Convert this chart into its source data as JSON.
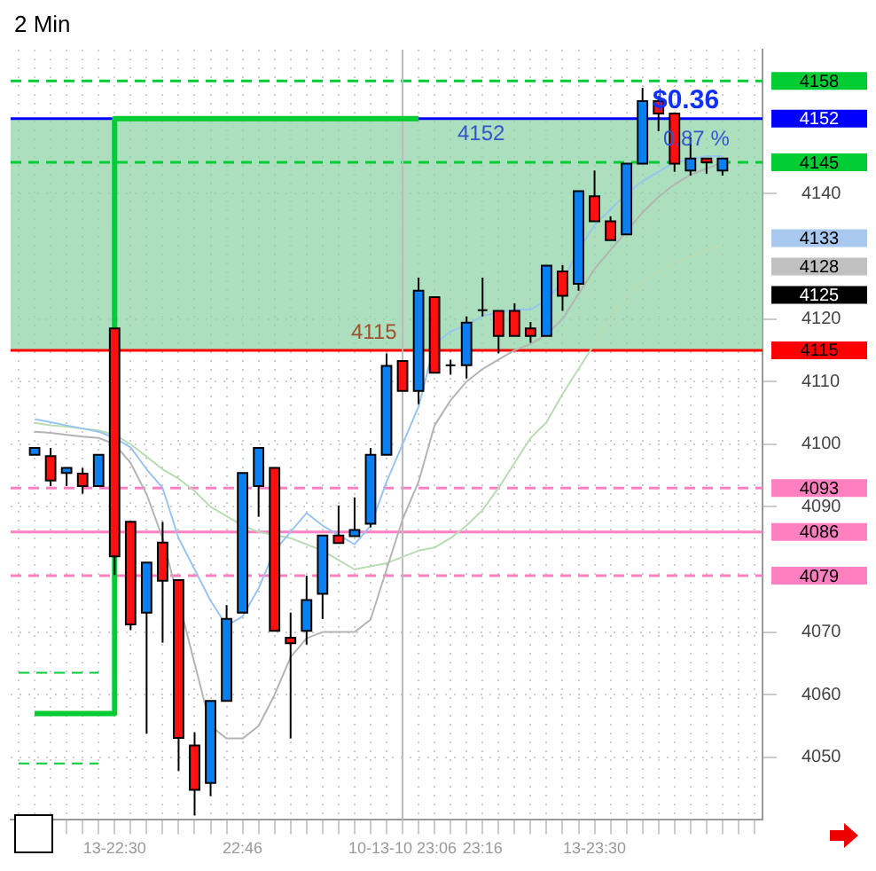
{
  "chart_data": {
    "type": "candlestick",
    "title": "2 Min",
    "categories": [
      null,
      null,
      null,
      null,
      null,
      null,
      "13-22:30",
      null,
      null,
      null,
      null,
      null,
      null,
      null,
      "22:46",
      null,
      null,
      null,
      null,
      null,
      null,
      null,
      null,
      null,
      "10-13-10 23:06",
      null,
      null,
      null,
      null,
      "23:16",
      null,
      null,
      null,
      null,
      null,
      null,
      "13-23:30",
      null,
      null,
      null,
      null,
      null,
      null,
      null,
      null,
      null,
      null
    ],
    "ohlc": [
      null,
      [
        4098.3,
        4099.4,
        4098.3,
        4099.4
      ],
      [
        4098.1,
        4099.4,
        4093.3,
        4094.2
      ],
      [
        4095.4,
        4096.2,
        4093.3,
        4096.2
      ],
      [
        4095.3,
        4096.2,
        4092.1,
        4093.3
      ],
      [
        4093.3,
        4098.3,
        4093.3,
        4098.3
      ],
      [
        4118.5,
        4118.5,
        4079.1,
        4082.1
      ],
      [
        4087.6,
        4087.6,
        4070.3,
        4071.2
      ],
      [
        4073.1,
        4081.1,
        4053.8,
        4081.1
      ],
      [
        4084.3,
        4087.6,
        4068.3,
        4078.2
      ],
      [
        4078.3,
        4078.3,
        4047.8,
        4053.1
      ],
      [
        4051.9,
        4054,
        4040.7,
        4044.8
      ],
      [
        4045.9,
        4059,
        4043.8,
        4059
      ],
      [
        4059,
        4074.3,
        4059,
        4072.1
      ],
      [
        4073.1,
        4095.4,
        4073.1,
        4095.4
      ],
      [
        4093.3,
        4099.4,
        4088.4,
        4099.4
      ],
      [
        4096.2,
        4096.2,
        4070.2,
        4070.2
      ],
      [
        4069.1,
        4073.1,
        4053,
        4068.2
      ],
      [
        4070.2,
        4079,
        4068,
        4075.1
      ],
      [
        4076.1,
        4085.4,
        4072.1,
        4085.4
      ],
      [
        4085.4,
        4090.2,
        4084.2,
        4084.2
      ],
      [
        4085.3,
        4091.5,
        4085.3,
        4086.3
      ],
      [
        4087.3,
        4099.4,
        4086.7,
        4098.3
      ],
      [
        4098.3,
        4114.5,
        4098.3,
        4112.5
      ],
      [
        4113.3,
        4113.3,
        4108.5,
        4108.5
      ],
      [
        4108.5,
        4126.6,
        4106.4,
        4124.5
      ],
      [
        4123.5,
        4123.5,
        4111.4,
        4111.4
      ],
      [
        4112.6,
        4113.5,
        4111.1,
        4112.6
      ],
      [
        4112.6,
        4120.4,
        4110.5,
        4119.4
      ],
      [
        4121.4,
        4126.6,
        4120.4,
        4121.4
      ],
      [
        4121.3,
        4121.3,
        4114.5,
        4117.3
      ],
      [
        4121.3,
        4122.5,
        4117.3,
        4117.3
      ],
      [
        4118.5,
        4119.5,
        4116.2,
        4117.3
      ],
      [
        4117.3,
        4128.5,
        4117.3,
        4128.5
      ],
      [
        4127.6,
        4128.6,
        4121.3,
        4123.7
      ],
      [
        4125.6,
        4140.4,
        4124.5,
        4140.4
      ],
      [
        4139.6,
        4143.7,
        4135.6,
        4135.6
      ],
      [
        4135.6,
        4136.4,
        4132.6,
        4132.6
      ],
      [
        4133.5,
        4144.8,
        4133.5,
        4144.8
      ],
      [
        4144.8,
        4156.9,
        4144.8,
        4154.8
      ],
      [
        4154.8,
        4155.6,
        4150,
        4152.8
      ],
      [
        4152.8,
        4152.8,
        4143.5,
        4144.8
      ],
      [
        4143.7,
        4149,
        4142.9,
        4145.6
      ],
      [
        4145.6,
        4145.6,
        4143.2,
        4145
      ],
      [
        4143.7,
        4145.6,
        4142.9,
        4145.6
      ],
      null,
      null
    ],
    "series": [
      {
        "type": "line",
        "color": "#99c4f0",
        "values": [
          null,
          4104,
          4103.5,
          4103,
          4102.5,
          4102,
          4101,
          4099.5,
          4096,
          4093,
          4085,
          4080,
          4075,
          4071,
          4072.5,
          4077,
          4083,
          4086,
          4089,
          4087,
          4085.5,
          4084,
          4087,
          4094,
          4100,
          4106,
          4116,
          4118,
          4119,
          4120.5,
          4121,
          4121.5,
          4121.5,
          4123,
          4126,
          4131,
          4135,
          4137.5,
          4140,
          4142,
          4143.5,
          4145,
          4145.5,
          4146,
          4146,
          null,
          null
        ]
      },
      {
        "type": "line",
        "color": "#b4b4b4",
        "values": [
          null,
          4102,
          4101.8,
          4101.5,
          4101.2,
          4101,
          4100,
          4097,
          4092,
          4085,
          null,
          4065,
          4055,
          4053,
          4053,
          4055,
          4060,
          4066,
          4069,
          4070,
          4070,
          4070,
          4072,
          4080,
          4088,
          4094,
          4103,
          4107,
          4110,
          4112,
          4113.5,
          4115,
          4116,
          4117.5,
          4120,
          4124,
          4128,
          4131,
          4134,
          4137,
          4139.5,
          4141.5,
          4143,
          4144,
          4145,
          null,
          null
        ]
      },
      {
        "type": "line",
        "color": "#b9dcb4",
        "values": [
          null,
          4103.4,
          4103,
          4102.8,
          4102.5,
          4102.2,
          4101.5,
          4100,
          4098,
          4096,
          4094.5,
          4092.5,
          4090,
          4088.5,
          4087,
          4086,
          4085.5,
          4085,
          4084,
          4083,
          4081.5,
          4080,
          4080.5,
          4081,
          4082,
          4083,
          4083.5,
          4085,
          4087,
          4089.5,
          4093,
          4097,
          4101,
          4103.5,
          4108,
          4112,
          4116,
          4120,
          4123.5,
          4126,
          4127.5,
          4129,
          4130,
          4131,
          4131.7,
          null,
          null
        ]
      },
      {
        "type": "step",
        "color": "#00cc33",
        "values": [
          null,
          4057,
          4057,
          4057,
          4057,
          4057,
          4152,
          4152,
          4152,
          4152,
          4152,
          4152,
          4152,
          4152,
          4152,
          4152,
          4152,
          4152,
          4152,
          4152,
          4152,
          4152,
          4152,
          4152,
          4152,
          4152,
          null,
          null,
          null,
          null,
          null,
          null,
          null,
          null,
          null,
          null,
          null,
          null,
          null,
          null,
          null,
          null,
          null,
          null,
          null,
          null,
          null
        ]
      },
      {
        "type": "line",
        "color": "#00cc33",
        "line_style": "dashed",
        "values": [
          4063.5,
          4063.5,
          4063.5,
          4063.5,
          4063.5,
          4063.5,
          null,
          null,
          null,
          null,
          null,
          null,
          null,
          null,
          null,
          null,
          null,
          null,
          null,
          null,
          null,
          null,
          null,
          null,
          null,
          null,
          null,
          null,
          null,
          null,
          null,
          null,
          null,
          null,
          null,
          null,
          null,
          null,
          null,
          null,
          null,
          null,
          null,
          null,
          null,
          null,
          null
        ]
      },
      {
        "type": "line",
        "color": "#00cc33",
        "line_style": "dashed",
        "values": [
          4049,
          4049,
          4049,
          4049,
          4049,
          4049,
          null,
          null,
          null,
          null,
          null,
          null,
          null,
          null,
          null,
          null,
          null,
          null,
          null,
          null,
          null,
          null,
          null,
          null,
          null,
          null,
          null,
          null,
          null,
          null,
          null,
          null,
          null,
          null,
          null,
          null,
          null,
          null,
          null,
          null,
          null,
          null,
          null,
          null,
          null,
          null,
          null
        ]
      }
    ],
    "ylim": [
      4040,
      4163
    ],
    "yticks": [
      4050,
      4060,
      4070,
      4090,
      4100,
      4110,
      4120,
      4140
    ],
    "grid": true,
    "ref_lines": [
      {
        "axis": "y",
        "value": 4158,
        "label": "4158",
        "color": "#00cc33",
        "line_style": "dashed"
      },
      {
        "axis": "y",
        "value": 4152,
        "label": "4152",
        "color": "#0000ff",
        "line_style": "solid"
      },
      {
        "axis": "y",
        "value": 4145,
        "label": "4145",
        "color": "#00cc33",
        "line_style": "dashed"
      },
      {
        "axis": "y",
        "value": 4115,
        "label": "4115",
        "color": "#ff0000",
        "line_style": "solid"
      },
      {
        "axis": "y",
        "value": 4093,
        "label": "4093",
        "color": "#ff80c0",
        "line_style": "dashed"
      },
      {
        "axis": "y",
        "value": 4086,
        "label": "4086",
        "color": "#ff80c0",
        "line_style": "solid"
      },
      {
        "axis": "y",
        "value": 4079,
        "label": "4079",
        "color": "#ff80c0",
        "line_style": "dashed"
      },
      {
        "axis": "x",
        "value": "10-13-10 23:06",
        "color": "#bbbbbb",
        "line_style": "solid"
      }
    ],
    "bands": [
      {
        "axis": "y",
        "from": 4115,
        "to": 4152,
        "label": "4152",
        "color": "#8fd4a8"
      }
    ],
    "annotations": [
      "$0.36",
      "0.87 %",
      "4115",
      "4133",
      "4128",
      "4125"
    ]
  }
}
